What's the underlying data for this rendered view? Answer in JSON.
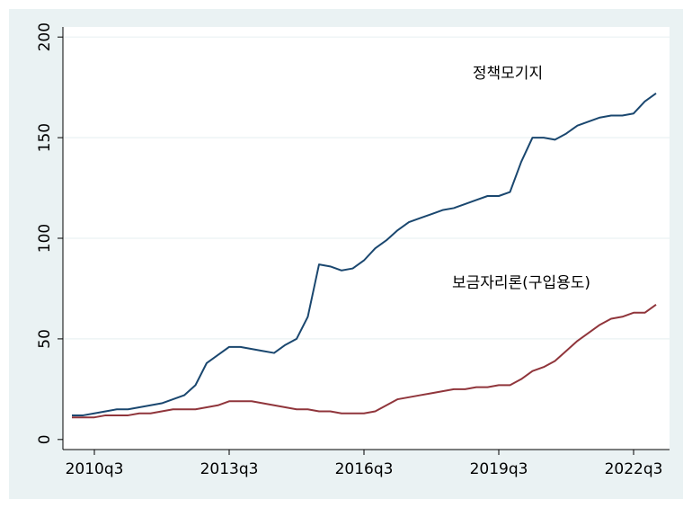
{
  "chart_data": {
    "type": "line",
    "categories": [
      null,
      null,
      "2010q3",
      null,
      null,
      null,
      null,
      null,
      null,
      null,
      null,
      null,
      null,
      null,
      "2013q3",
      null,
      null,
      null,
      null,
      null,
      null,
      null,
      null,
      null,
      null,
      null,
      "2016q3",
      null,
      null,
      null,
      null,
      null,
      null,
      null,
      null,
      null,
      null,
      null,
      "2019q3",
      null,
      null,
      null,
      null,
      null,
      null,
      null,
      null,
      null,
      null,
      null,
      "2022q3",
      null,
      null
    ],
    "series": [
      {
        "name": "정책모기지",
        "color": "#1a476f",
        "values": [
          12,
          12,
          13,
          14,
          15,
          15,
          16,
          17,
          18,
          20,
          22,
          27,
          38,
          42,
          46,
          46,
          45,
          44,
          43,
          47,
          50,
          61,
          87,
          86,
          84,
          85,
          89,
          95,
          99,
          104,
          108,
          110,
          112,
          114,
          115,
          117,
          119,
          121,
          121,
          123,
          138,
          150,
          150,
          149,
          152,
          156,
          158,
          160,
          161,
          161,
          162,
          168,
          172
        ]
      },
      {
        "name": "보금자리론(구입용도)",
        "color": "#90353b",
        "values": [
          11,
          11,
          11,
          12,
          12,
          12,
          13,
          13,
          14,
          15,
          15,
          15,
          16,
          17,
          19,
          19,
          19,
          18,
          17,
          16,
          15,
          15,
          14,
          14,
          13,
          13,
          13,
          14,
          17,
          20,
          21,
          22,
          23,
          24,
          25,
          25,
          26,
          26,
          27,
          27,
          30,
          34,
          36,
          39,
          44,
          49,
          53,
          57,
          60,
          61,
          63,
          63,
          67
        ]
      }
    ],
    "ylim": [
      -5,
      205
    ],
    "yticks": [
      0,
      50,
      100,
      150,
      200
    ],
    "grid": true
  }
}
